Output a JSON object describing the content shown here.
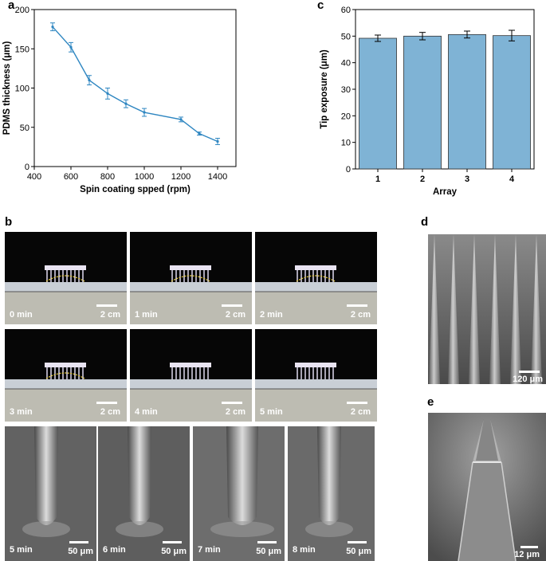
{
  "panels": {
    "a": "a",
    "b": "b",
    "c": "c",
    "d": "d",
    "e": "e"
  },
  "chart_data": [
    {
      "panel": "a",
      "type": "line",
      "xlabel": "Spin coating spped (rpm)",
      "ylabel": "PDMS thickness (μm)",
      "xlim": [
        400,
        1500
      ],
      "ylim": [
        0,
        200
      ],
      "xticks": [
        "400",
        "600",
        "800",
        "1000",
        "1200",
        "1400"
      ],
      "yticks": [
        "0",
        "50",
        "100",
        "150",
        "200"
      ],
      "x": [
        500,
        600,
        700,
        800,
        900,
        1000,
        1200,
        1300,
        1400
      ],
      "y": [
        178,
        152,
        110,
        93,
        80,
        69,
        60,
        42,
        32
      ],
      "err": [
        5,
        6,
        6,
        7,
        5,
        5,
        3,
        2,
        4
      ],
      "color": "#2e86c1"
    },
    {
      "panel": "c",
      "type": "bar",
      "xlabel": "Array",
      "ylabel": "Tip exposure (μm)",
      "categories": [
        "1",
        "2",
        "3",
        "4"
      ],
      "values": [
        49.2,
        50.0,
        50.6,
        50.2
      ],
      "err": [
        1.2,
        1.4,
        1.3,
        2.0
      ],
      "ylim": [
        0,
        60
      ],
      "yticks": [
        "0",
        "10",
        "20",
        "30",
        "40",
        "50",
        "60"
      ],
      "color": "#7fb3d5"
    }
  ],
  "photos": [
    {
      "time": "0 min",
      "scale": "2 cm"
    },
    {
      "time": "1 min",
      "scale": "2 cm"
    },
    {
      "time": "2 min",
      "scale": "2 cm"
    },
    {
      "time": "3 min",
      "scale": "2 cm"
    },
    {
      "time": "4 min",
      "scale": "2 cm"
    },
    {
      "time": "5 min",
      "scale": "2 cm"
    }
  ],
  "sem_series": [
    {
      "time": "5 min",
      "scale": "50 μm"
    },
    {
      "time": "6 min",
      "scale": "50 μm"
    },
    {
      "time": "7 min",
      "scale": "50 μm"
    },
    {
      "time": "8 min",
      "scale": "50 μm"
    }
  ],
  "sem_d": {
    "scale": "120 μm"
  },
  "sem_e": {
    "scale": "12 μm"
  }
}
